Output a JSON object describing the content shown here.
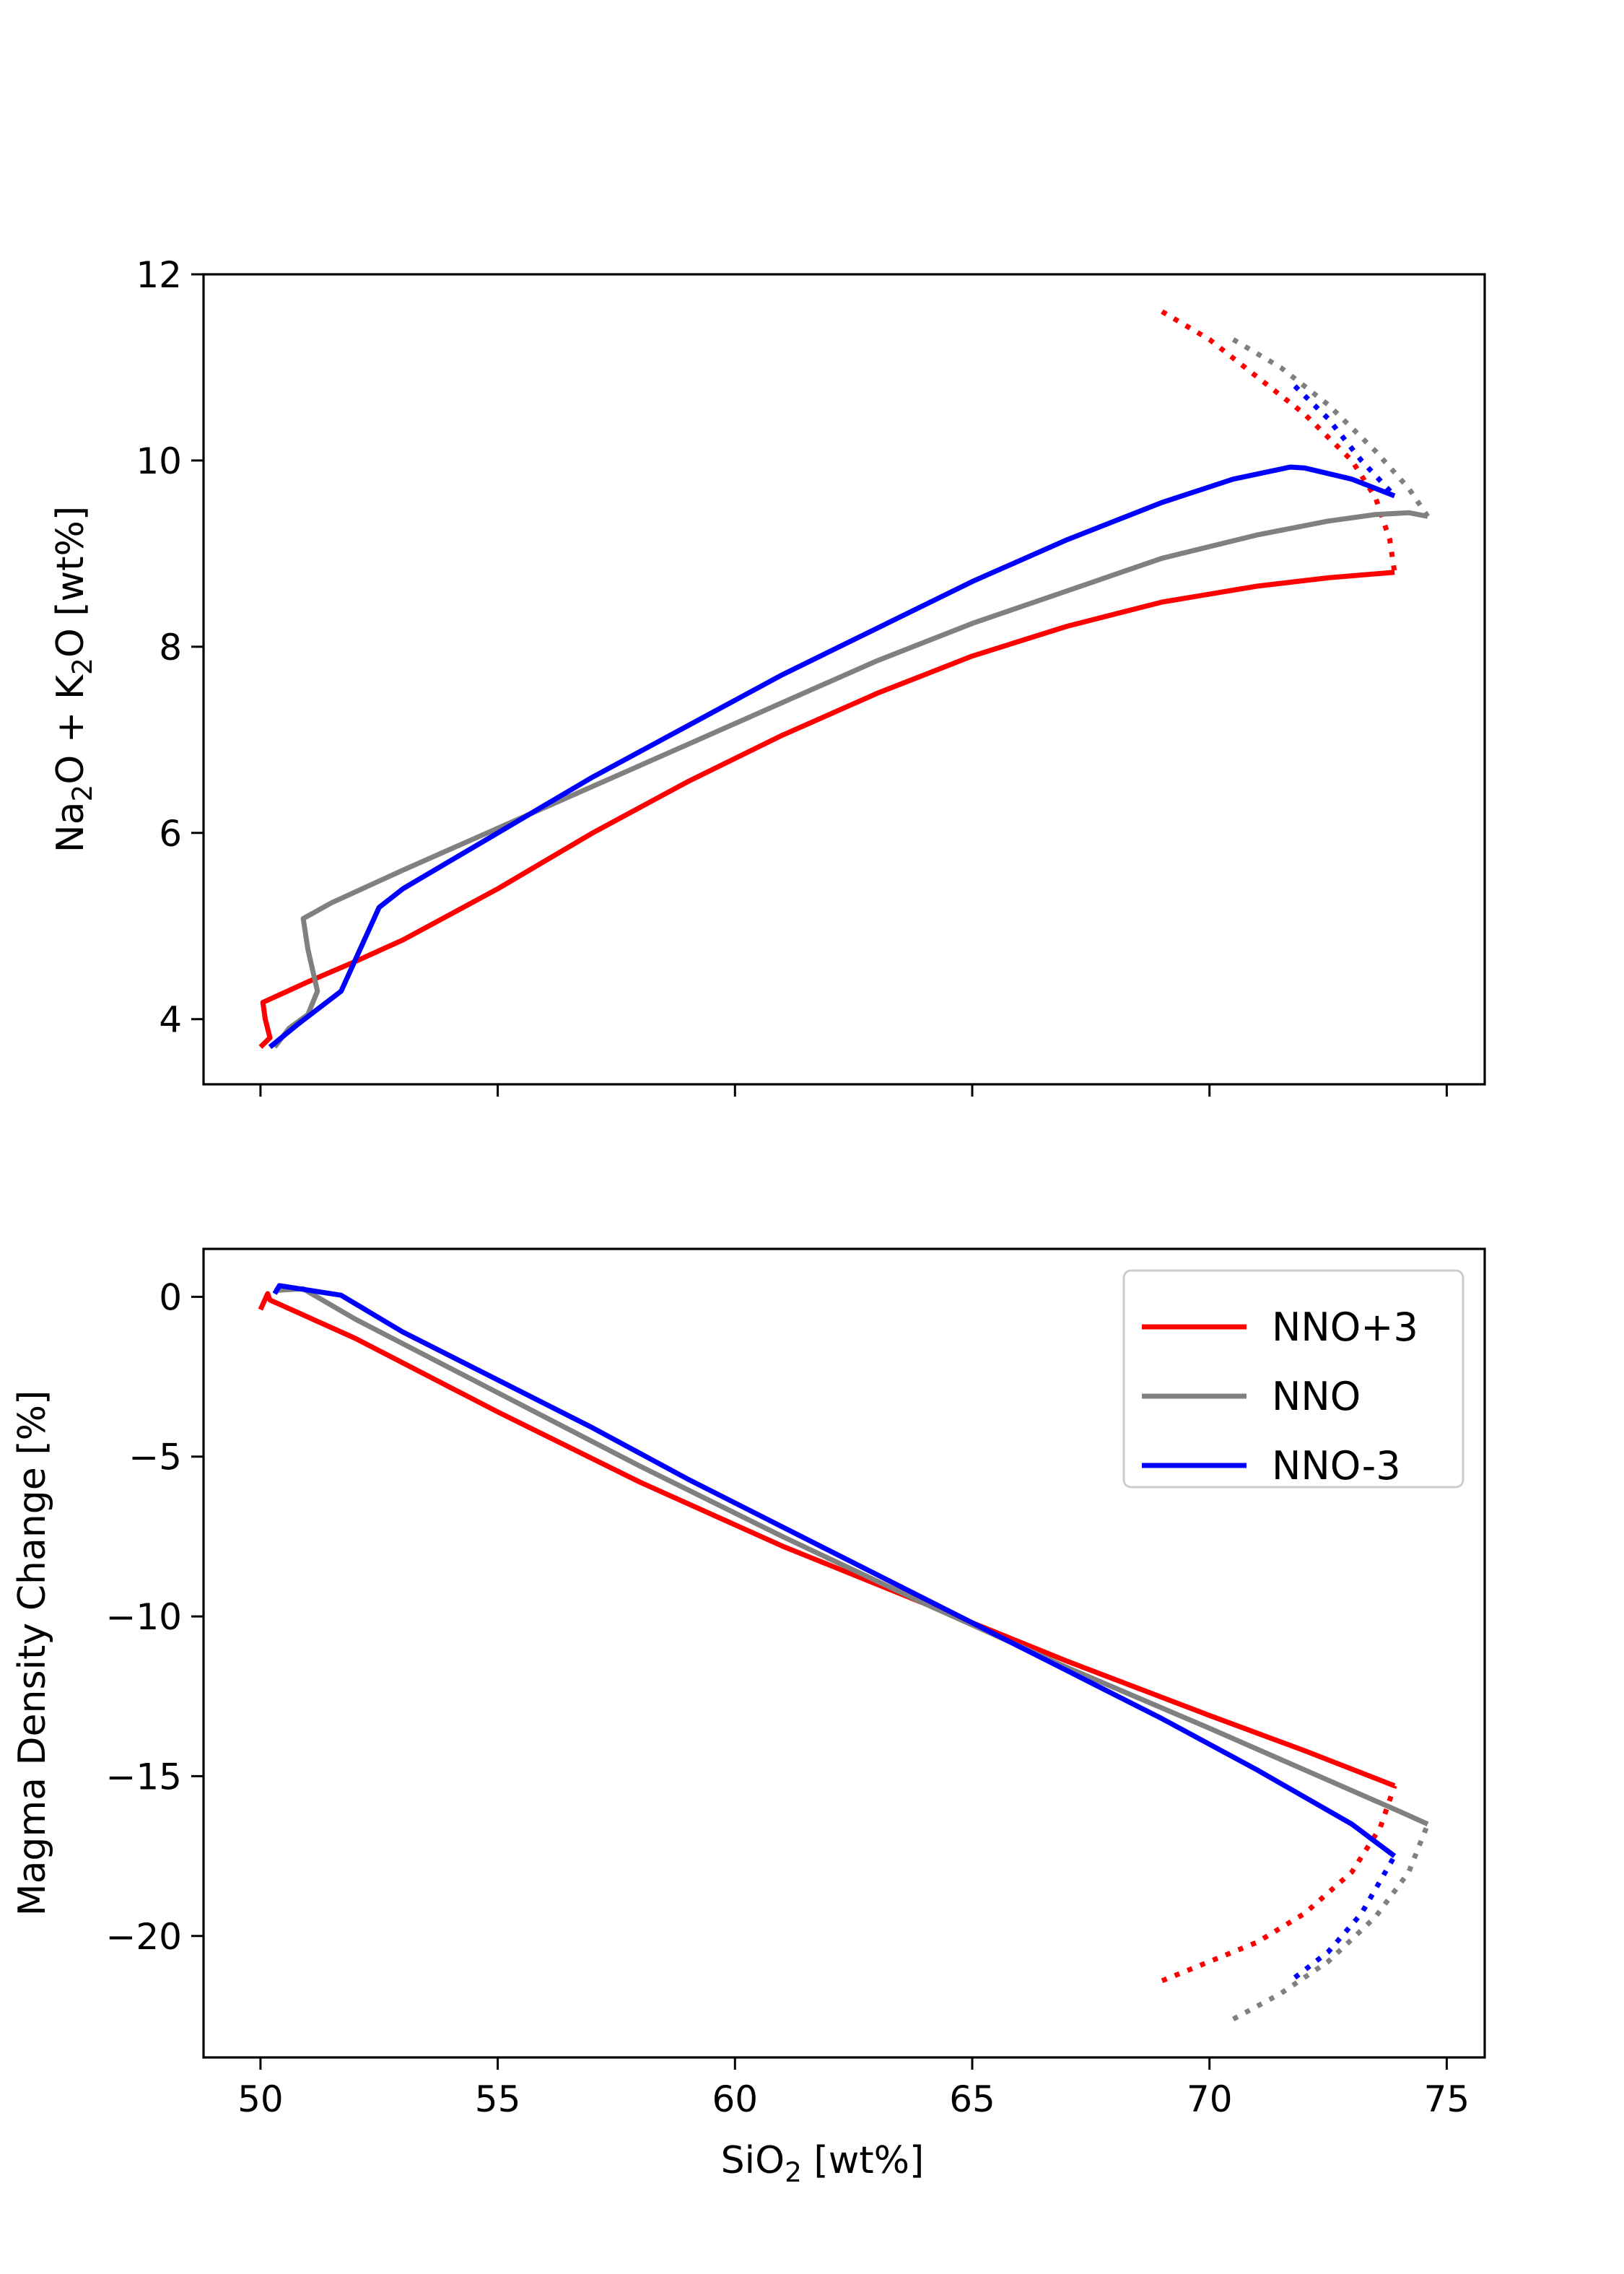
{
  "chart_data": [
    {
      "type": "line",
      "xlabel": "SiO2 [wt%]",
      "ylabel": "Na2O + K2O [wt%]",
      "xlim": [
        48.8,
        75.8
      ],
      "ylim": [
        3.3,
        12.0
      ],
      "xticks": [
        50,
        55,
        60,
        65,
        70,
        75
      ],
      "yticks": [
        4,
        6,
        8,
        10,
        12
      ],
      "xtick_labels_shown": false,
      "grid": false,
      "series": [
        {
          "name": "NNO+3",
          "color": "#ff0000",
          "style": "solid",
          "x": [
            50.0,
            50.2,
            50.1,
            50.05,
            51.0,
            52.0,
            53.0,
            55.0,
            57.0,
            59.0,
            61.0,
            63.0,
            65.0,
            67.0,
            69.0,
            71.0,
            72.5,
            73.9
          ],
          "y": [
            3.7,
            3.8,
            4.0,
            4.18,
            4.4,
            4.62,
            4.85,
            5.4,
            6.0,
            6.55,
            7.05,
            7.5,
            7.9,
            8.22,
            8.48,
            8.65,
            8.74,
            8.8
          ]
        },
        {
          "name": "NNO+3",
          "color": "#ff0000",
          "style": "dotted",
          "x": [
            69.0,
            70.0,
            71.0,
            72.0,
            73.0,
            73.5,
            73.8,
            73.9
          ],
          "y": [
            11.6,
            11.3,
            10.9,
            10.5,
            10.0,
            9.6,
            9.15,
            8.8
          ]
        },
        {
          "name": "NNO",
          "color": "#808080",
          "style": "solid",
          "x": [
            50.3,
            50.6,
            51.0,
            51.2,
            51.0,
            50.9,
            51.5,
            53.0,
            55.0,
            57.0,
            59.0,
            61.0,
            63.0,
            65.0,
            67.0,
            69.0,
            71.0,
            72.5,
            73.5,
            74.2,
            74.6
          ],
          "y": [
            3.7,
            3.9,
            4.05,
            4.3,
            4.75,
            5.08,
            5.25,
            5.6,
            6.05,
            6.5,
            6.95,
            7.4,
            7.85,
            8.25,
            8.6,
            8.95,
            9.2,
            9.35,
            9.42,
            9.44,
            9.4
          ]
        },
        {
          "name": "NNO",
          "color": "#808080",
          "style": "dotted",
          "x": [
            70.5,
            71.5,
            72.5,
            73.5,
            74.2,
            74.6
          ],
          "y": [
            11.3,
            11.0,
            10.6,
            10.1,
            9.7,
            9.4
          ]
        },
        {
          "name": "NNO-3",
          "color": "#0000ff",
          "style": "solid",
          "x": [
            50.2,
            50.8,
            51.7,
            52.1,
            52.5,
            53.0,
            55.0,
            57.0,
            59.0,
            61.0,
            63.0,
            65.0,
            67.0,
            69.0,
            70.5,
            71.7,
            72.0,
            73.0,
            73.9
          ],
          "y": [
            3.7,
            3.95,
            4.3,
            4.75,
            5.2,
            5.4,
            6.0,
            6.6,
            7.15,
            7.7,
            8.2,
            8.7,
            9.15,
            9.55,
            9.8,
            9.93,
            9.92,
            9.8,
            9.62
          ]
        },
        {
          "name": "NNO-3",
          "color": "#0000ff",
          "style": "dotted",
          "x": [
            71.8,
            72.5,
            73.2,
            73.9
          ],
          "y": [
            10.8,
            10.45,
            10.0,
            9.62
          ]
        }
      ]
    },
    {
      "type": "line",
      "xlabel": "SiO2 [wt%]",
      "ylabel": "Magma Density Change [%]",
      "xlim": [
        48.8,
        75.8
      ],
      "ylim": [
        -23.8,
        1.5
      ],
      "xticks": [
        50,
        55,
        60,
        65,
        70,
        75
      ],
      "yticks": [
        0,
        -5,
        -10,
        -15,
        -20
      ],
      "grid": false,
      "legend": {
        "position": "top-right",
        "entries": [
          {
            "label": "NNO+3",
            "color": "#ff0000"
          },
          {
            "label": "NNO",
            "color": "#808080"
          },
          {
            "label": "NNO-3",
            "color": "#0000ff"
          }
        ]
      },
      "series": [
        {
          "name": "NNO+3",
          "color": "#ff0000",
          "style": "solid",
          "x": [
            50.0,
            50.15,
            50.2,
            52.0,
            55.0,
            58.0,
            61.0,
            64.0,
            67.0,
            70.0,
            72.0,
            73.9
          ],
          "y": [
            -0.4,
            0.1,
            -0.1,
            -1.3,
            -3.6,
            -5.8,
            -7.8,
            -9.6,
            -11.4,
            -13.1,
            -14.2,
            -15.3
          ]
        },
        {
          "name": "NNO+3",
          "color": "#ff0000",
          "style": "dotted",
          "x": [
            69.0,
            70.0,
            71.0,
            72.0,
            73.0,
            73.6,
            73.9
          ],
          "y": [
            -21.4,
            -20.8,
            -20.2,
            -19.3,
            -18.0,
            -16.6,
            -15.3
          ]
        },
        {
          "name": "NNO",
          "color": "#808080",
          "style": "solid",
          "x": [
            50.3,
            50.9,
            52.0,
            55.0,
            58.0,
            61.0,
            64.0,
            67.0,
            70.0,
            72.0,
            74.0,
            74.6
          ],
          "y": [
            0.2,
            0.25,
            -0.7,
            -3.0,
            -5.3,
            -7.5,
            -9.6,
            -11.6,
            -13.5,
            -14.8,
            -16.1,
            -16.5
          ]
        },
        {
          "name": "NNO",
          "color": "#808080",
          "style": "dotted",
          "x": [
            70.5,
            71.5,
            72.5,
            73.5,
            74.2,
            74.6
          ],
          "y": [
            -22.6,
            -21.8,
            -20.8,
            -19.4,
            -18.0,
            -16.5
          ]
        },
        {
          "name": "NNO-3",
          "color": "#0000ff",
          "style": "solid",
          "x": [
            50.3,
            50.4,
            51.7,
            53.0,
            55.0,
            57.0,
            59.0,
            61.0,
            63.0,
            65.0,
            67.0,
            69.0,
            71.0,
            73.0,
            73.9
          ],
          "y": [
            0.1,
            0.35,
            0.05,
            -1.1,
            -2.6,
            -4.1,
            -5.7,
            -7.2,
            -8.7,
            -10.2,
            -11.7,
            -13.2,
            -14.8,
            -16.5,
            -17.5
          ]
        },
        {
          "name": "NNO-3",
          "color": "#0000ff",
          "style": "dotted",
          "x": [
            71.8,
            72.5,
            73.2,
            73.9
          ],
          "y": [
            -21.3,
            -20.5,
            -19.3,
            -17.5
          ]
        }
      ]
    }
  ]
}
